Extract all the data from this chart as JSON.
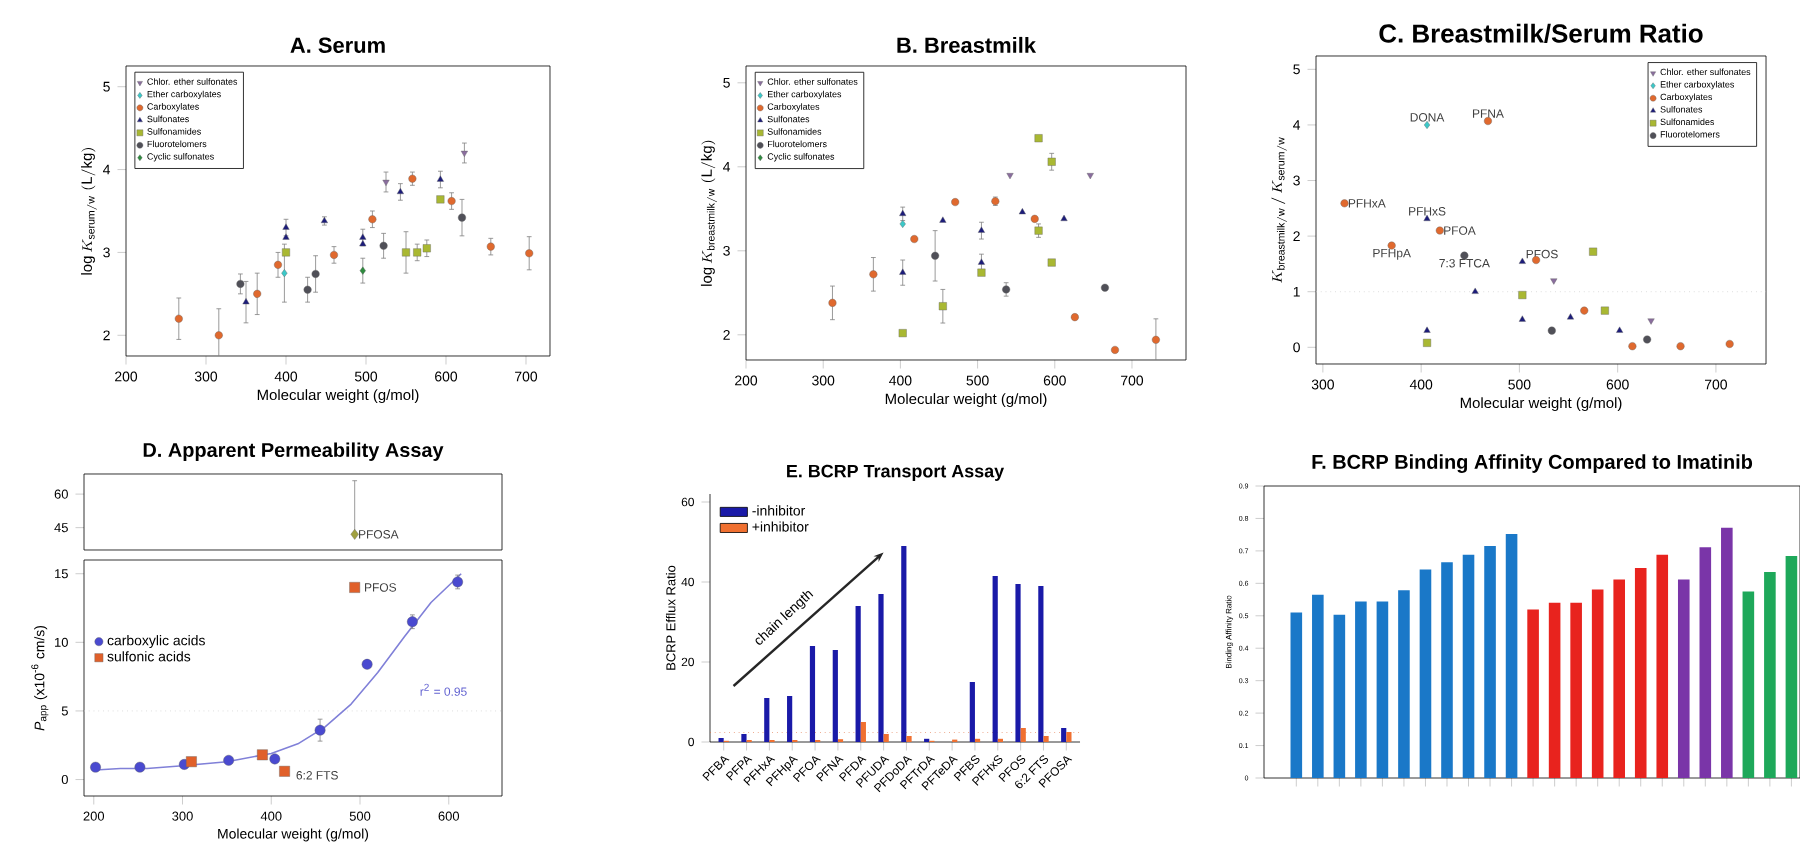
{
  "chart_data": [
    {
      "type": "scatter",
      "title": "A. Serum",
      "xlabel": "Molecular weight (g/mol)",
      "ylabel": "\\log K_{\\mathrm{serum/w}}\\ (\\mathrm{L/kg})",
      "xlim": [
        200,
        730
      ],
      "ylim": [
        1.75,
        5.25
      ],
      "xticks": [
        200,
        300,
        400,
        500,
        600,
        700
      ],
      "yticks": [
        2,
        3,
        4,
        5
      ],
      "legend": "top left",
      "series": [
        {
          "name": "Chlor. ether sulfonates",
          "color": "#8a6d9e",
          "marker": "triangle down",
          "x": [
            525,
            623
          ],
          "values": [
            3.85,
            4.2
          ],
          "errors": [
            0.12,
            0.12
          ]
        },
        {
          "name": "Ether carboxylates",
          "color": "#3cc8c8",
          "marker": "diamond",
          "x": [
            398
          ],
          "values": [
            2.75
          ],
          "errors": [
            0.35
          ]
        },
        {
          "name": "Carboxylates",
          "color": "#e0692e",
          "marker": "circle",
          "x": [
            266,
            316,
            364,
            390,
            460,
            508,
            558,
            607,
            656,
            704
          ],
          "values": [
            2.2,
            2.0,
            2.5,
            2.85,
            2.97,
            3.4,
            3.89,
            3.62,
            3.07,
            2.99
          ],
          "errors": [
            0.25,
            0.32,
            0.25,
            0.15,
            0.1,
            0.1,
            0.08,
            0.1,
            0.1,
            0.2
          ]
        },
        {
          "name": "Sulfonates",
          "color": "#1c1c7a",
          "marker": "triangle",
          "x": [
            350,
            400,
            400,
            448,
            496,
            496,
            543,
            593
          ],
          "values": [
            2.4,
            3.3,
            3.18,
            3.38,
            3.18,
            3.1,
            3.73,
            3.88
          ],
          "errors": [
            0.25,
            0.1,
            null,
            0.05,
            0.1,
            null,
            0.1,
            0.1
          ]
        },
        {
          "name": "Sulfonamides",
          "color": "#a9b832",
          "marker": "square",
          "x": [
            400,
            550,
            564,
            576,
            593
          ],
          "values": [
            3.0,
            3.0,
            3.0,
            3.05,
            3.64
          ],
          "errors": [
            null,
            0.25,
            0.1,
            0.1,
            null
          ]
        },
        {
          "name": "Fluorotelomers",
          "color": "#505058",
          "marker": "circle",
          "x": [
            343,
            427,
            437,
            522,
            620
          ],
          "values": [
            2.62,
            2.55,
            2.74,
            3.08,
            3.42
          ],
          "errors": [
            0.12,
            0.15,
            0.22,
            0.15,
            0.22
          ]
        },
        {
          "name": "Cyclic sulfonates",
          "color": "#2e8b3e",
          "marker": "diamond",
          "x": [
            496
          ],
          "values": [
            2.78
          ],
          "errors": [
            0.15
          ]
        }
      ]
    },
    {
      "type": "scatter",
      "title": "B. Breastmilk",
      "xlabel": "Molecular weight (g/mol)",
      "ylabel": "\\log K_{\\mathrm{breastmilk/w}}\\ (\\mathrm{L/kg})",
      "xlim": [
        200,
        770
      ],
      "ylim": [
        1.7,
        5.2
      ],
      "xticks": [
        200,
        300,
        400,
        500,
        600,
        700
      ],
      "yticks": [
        2,
        3,
        4,
        5
      ],
      "legend": "top left",
      "series": [
        {
          "name": "Chlor. ether sulfonates",
          "color": "#8a6d9e",
          "marker": "triangle down",
          "x": [
            542,
            646
          ],
          "values": [
            3.9,
            3.9
          ]
        },
        {
          "name": "Ether carboxylates",
          "color": "#3cc8c8",
          "marker": "diamond",
          "x": [
            403
          ],
          "values": [
            3.32
          ]
        },
        {
          "name": "Carboxylates",
          "color": "#e0692e",
          "marker": "circle",
          "x": [
            312,
            365,
            418,
            471,
            523,
            574,
            626,
            678,
            731
          ],
          "values": [
            2.38,
            2.72,
            3.14,
            3.58,
            3.59,
            3.38,
            2.21,
            1.82,
            1.94
          ],
          "errors": [
            0.2,
            0.2,
            null,
            null,
            0.05,
            null,
            null,
            null,
            0.25
          ]
        },
        {
          "name": "Sulfonates",
          "color": "#1c1c7a",
          "marker": "triangle",
          "x": [
            403,
            403,
            455,
            505,
            505,
            558,
            612
          ],
          "values": [
            3.44,
            2.74,
            3.36,
            3.24,
            2.86,
            3.46,
            3.38
          ],
          "errors": [
            0.08,
            0.15,
            null,
            0.1,
            0.1,
            null,
            null
          ]
        },
        {
          "name": "Sulfonamides",
          "color": "#a9b832",
          "marker": "square",
          "x": [
            403,
            455,
            505,
            579,
            596,
            579,
            596
          ],
          "values": [
            2.02,
            2.34,
            2.74,
            4.34,
            4.06,
            3.24,
            2.86
          ],
          "errors": [
            null,
            0.2,
            null,
            null,
            0.1,
            0.08,
            null
          ]
        },
        {
          "name": "Fluorotelomers",
          "color": "#505058",
          "marker": "circle",
          "x": [
            445,
            537,
            665
          ],
          "values": [
            2.94,
            2.54,
            2.56
          ],
          "errors": [
            0.3,
            0.08,
            null
          ]
        },
        {
          "name": "Cyclic sulfonates",
          "color": "#2e8b3e",
          "marker": "diamond"
        }
      ]
    },
    {
      "type": "scatter",
      "title": "C. Breastmilk/Serum Ratio",
      "xlabel": "Molecular weight (g/mol)",
      "ylabel": "K_{\\mathrm{breastmilk/w}}\\,/\\,K_{\\mathrm{serum/w}}",
      "xlim": [
        293,
        751
      ],
      "ylim": [
        -0.3,
        5.24
      ],
      "xticks": [
        300,
        400,
        500,
        600,
        700
      ],
      "yticks": [
        0,
        1,
        2,
        3,
        4,
        5
      ],
      "legend": "top right",
      "ref_lines": [
        {
          "axis": "y",
          "value": 1,
          "color": "#cccccc",
          "line_style": "dotted"
        }
      ],
      "annotations": [
        {
          "text": "DONA",
          "x": 406,
          "y": 4.0
        },
        {
          "text": "PFNA",
          "x": 468,
          "y": 4.07
        },
        {
          "text": "PFHxA",
          "x": 322,
          "y": 2.59
        },
        {
          "text": "PFHpA",
          "x": 370,
          "y": 1.83
        },
        {
          "text": "PFHxS",
          "x": 406,
          "y": 2.31
        },
        {
          "text": "PFOA",
          "x": 419,
          "y": 2.1
        },
        {
          "text": "7:3 FTCA",
          "x": 444,
          "y": 1.65
        },
        {
          "text": "PFOS",
          "x": 503,
          "y": 1.54
        }
      ],
      "series": [
        {
          "name": "Chlor. ether sulfonates",
          "color": "#8a6d9e",
          "marker": "triangle down",
          "x": [
            535,
            634
          ],
          "values": [
            1.2,
            0.48
          ]
        },
        {
          "name": "Ether carboxylates",
          "color": "#3cc8c8",
          "marker": "diamond",
          "x": [
            406
          ],
          "values": [
            4.0
          ]
        },
        {
          "name": "Carboxylates",
          "color": "#e0692e",
          "marker": "circle",
          "x": [
            322,
            370,
            419,
            468,
            517,
            566,
            615,
            664,
            714
          ],
          "values": [
            2.59,
            1.83,
            2.1,
            4.07,
            1.57,
            0.66,
            0.02,
            0.02,
            0.06
          ]
        },
        {
          "name": "Sulfonates",
          "color": "#1c1c7a",
          "marker": "triangle",
          "x": [
            406,
            406,
            455,
            503,
            503,
            552,
            602
          ],
          "values": [
            2.31,
            0.3,
            1.0,
            1.54,
            0.5,
            0.54,
            0.3
          ]
        },
        {
          "name": "Sulfonamides",
          "color": "#a9b832",
          "marker": "square",
          "x": [
            406,
            503,
            575,
            587
          ],
          "values": [
            0.08,
            0.94,
            1.72,
            0.66
          ]
        },
        {
          "name": "Fluorotelomers",
          "color": "#505058",
          "marker": "circle",
          "x": [
            444,
            533,
            630
          ],
          "values": [
            1.65,
            0.3,
            0.14
          ]
        }
      ]
    },
    {
      "type": "scatter",
      "title": "D. Apparent Permeability Assay",
      "xlim": [
        189,
        660
      ],
      "ylim": [
        35,
        69
      ],
      "yticks": [
        45,
        60
      ],
      "tick_labels": "y",
      "annotations": [
        {
          "text": "PFOSA",
          "x": 494,
          "y": 42
        }
      ],
      "series": [
        {
          "color": "#a0a040",
          "marker": "diamond",
          "x": [
            494
          ],
          "values": [
            42
          ],
          "errors": [
            [
              42,
              66
            ]
          ]
        }
      ]
    },
    {
      "type": "scatter",
      "xlabel": "Molecular weight (g/mol)",
      "ylabel": "*P*$_{app}$ (x10$^{-6}$ cm/s)",
      "xlim": [
        189,
        660
      ],
      "ylim": [
        -1.2,
        16
      ],
      "xticks": [
        200,
        300,
        400,
        500,
        600
      ],
      "yticks": [
        0,
        5,
        10,
        15
      ],
      "legend": "left",
      "ref_lines": [
        {
          "axis": "y",
          "value": 5,
          "color": "#cccccc",
          "line_style": "dotted"
        }
      ],
      "annotations": [
        {
          "text": "PFOS",
          "x": 494,
          "y": 14.0
        },
        {
          "text": "6:2 FTS",
          "x": 415,
          "y": 0.6
        },
        "r$^{2}$ = 0.95"
      ],
      "series": [
        {
          "type": "line",
          "color": "#8080d8",
          "line_style": "solid",
          "x": [
            202,
            230,
            260,
            300,
            350,
            400,
            430,
            460,
            490,
            520,
            550,
            580,
            614
          ],
          "values": [
            0.7,
            0.8,
            0.8,
            1.0,
            1.3,
            1.9,
            2.6,
            3.8,
            5.5,
            7.8,
            10.4,
            12.9,
            15.0
          ]
        },
        {
          "name": "carboxylic acids",
          "color": "#4a4ad0",
          "marker": "circle",
          "x": [
            202,
            252,
            302,
            352,
            404,
            455,
            508,
            559,
            610
          ],
          "values": [
            0.9,
            0.9,
            1.1,
            1.4,
            1.5,
            3.6,
            8.4,
            11.5,
            14.4
          ],
          "errors": [
            null,
            null,
            null,
            null,
            null,
            0.8,
            null,
            0.5,
            0.5
          ]
        },
        {
          "name": "sulfonic acids",
          "color": "#e0602a",
          "marker": "square",
          "x": [
            310,
            390,
            415,
            494
          ],
          "values": [
            1.3,
            1.8,
            0.6,
            14.0
          ]
        }
      ]
    },
    {
      "type": "bar",
      "title": "E. BCRP Transport Assay",
      "ylabel": "BCRP Efflux Ratio",
      "ylim": [
        0,
        62
      ],
      "yticks": [
        0,
        20,
        40,
        60
      ],
      "legend": "top left",
      "categories": [
        "PFBA",
        "PFPA",
        "PFHxA",
        "PFHpA",
        "PFOA",
        "PFNA",
        "PFDA",
        "PFUDA",
        "PFDoDA",
        "PFTrDA",
        "PFTeDA",
        "PFBS",
        "PFHxS",
        "PFOS",
        "6:2 FTS",
        "PFOSA"
      ],
      "ref_lines": [
        {
          "axis": "y",
          "value": 2.4,
          "color": "#e07040",
          "line_style": "dotted"
        }
      ],
      "annotations": [
        "chain length"
      ],
      "series": [
        {
          "name": "-inhibitor",
          "color": "#1a1aa8",
          "values": [
            1,
            2,
            11,
            11.5,
            24,
            23,
            34,
            37,
            49,
            0.8,
            0,
            15,
            41.5,
            39.5,
            39,
            3.5
          ]
        },
        {
          "name": "+inhibitor",
          "color": "#f07030",
          "values": [
            0.3,
            0.5,
            0.5,
            0.5,
            0.5,
            0.7,
            5,
            2,
            1.5,
            0.3,
            0.6,
            0.8,
            0.8,
            3.5,
            1.5,
            2.5
          ]
        }
      ]
    },
    {
      "type": "bar",
      "title": "F. BCRP Binding Affinity  Compared to Imatinib",
      "ylabel": "Binding Affinity Ratio",
      "ylim": [
        0,
        0.9
      ],
      "yticks": [
        0,
        0.1,
        0.2,
        0.3,
        0.4,
        0.5,
        0.6,
        0.7,
        0.8,
        0.9
      ],
      "categories": [
        null,
        null,
        null,
        null,
        null,
        null,
        null,
        null,
        null,
        null,
        null,
        null,
        null,
        null,
        null,
        null,
        null,
        null,
        null,
        null,
        null,
        null,
        null,
        null
      ],
      "values": [
        0.51,
        0.565,
        0.503,
        0.544,
        0.544,
        0.579,
        0.643,
        0.665,
        0.688,
        0.715,
        0.752,
        0.519,
        0.54,
        0.54,
        0.581,
        0.612,
        0.647,
        0.688,
        0.612,
        0.711,
        0.771,
        0.575,
        0.635,
        0.684
      ],
      "colors": [
        "#1a78c8",
        "#1a78c8",
        "#1a78c8",
        "#1a78c8",
        "#1a78c8",
        "#1a78c8",
        "#1a78c8",
        "#1a78c8",
        "#1a78c8",
        "#1a78c8",
        "#1a78c8",
        "#e8231e",
        "#e8231e",
        "#e8231e",
        "#e8231e",
        "#e8231e",
        "#e8231e",
        "#e8231e",
        "#7a35a8",
        "#7a35a8",
        "#7a35a8",
        "#1ea85a",
        "#1ea85a",
        "#1ea85a"
      ]
    }
  ]
}
